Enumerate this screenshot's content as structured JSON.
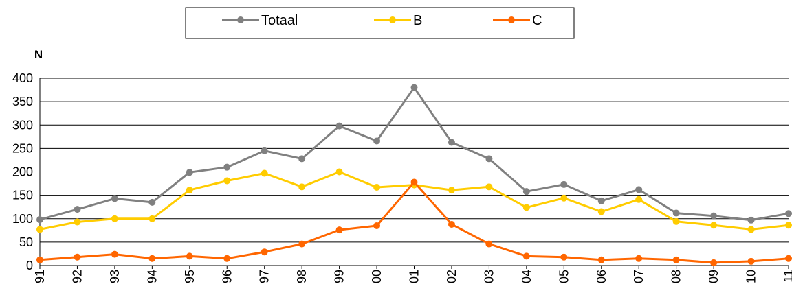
{
  "chart_data": {
    "type": "line",
    "ylabel": "N",
    "ylim": [
      0,
      400
    ],
    "yticks": [
      0,
      50,
      100,
      150,
      200,
      250,
      300,
      350,
      400
    ],
    "grid": "horizontal",
    "legend_position": "top-center",
    "categories": [
      "91",
      "92",
      "93",
      "94",
      "95",
      "96",
      "97",
      "98",
      "99",
      "00",
      "01",
      "02",
      "03",
      "04",
      "05",
      "06",
      "07",
      "08",
      "09",
      "10",
      "11"
    ],
    "series": [
      {
        "name": "Totaal",
        "color": "#808080",
        "values": [
          98,
          120,
          143,
          135,
          199,
          210,
          245,
          228,
          298,
          266,
          380,
          263,
          228,
          158,
          173,
          138,
          162,
          112,
          106,
          97,
          111
        ]
      },
      {
        "name": "B",
        "color": "#FFCC00",
        "values": [
          77,
          93,
          100,
          100,
          161,
          181,
          197,
          168,
          200,
          167,
          172,
          161,
          168,
          124,
          144,
          115,
          141,
          94,
          86,
          77,
          86
        ]
      },
      {
        "name": "C",
        "color": "#FF6600",
        "values": [
          12,
          18,
          24,
          15,
          20,
          15,
          29,
          46,
          76,
          85,
          178,
          88,
          46,
          20,
          18,
          12,
          15,
          12,
          6,
          9,
          15
        ]
      }
    ]
  }
}
